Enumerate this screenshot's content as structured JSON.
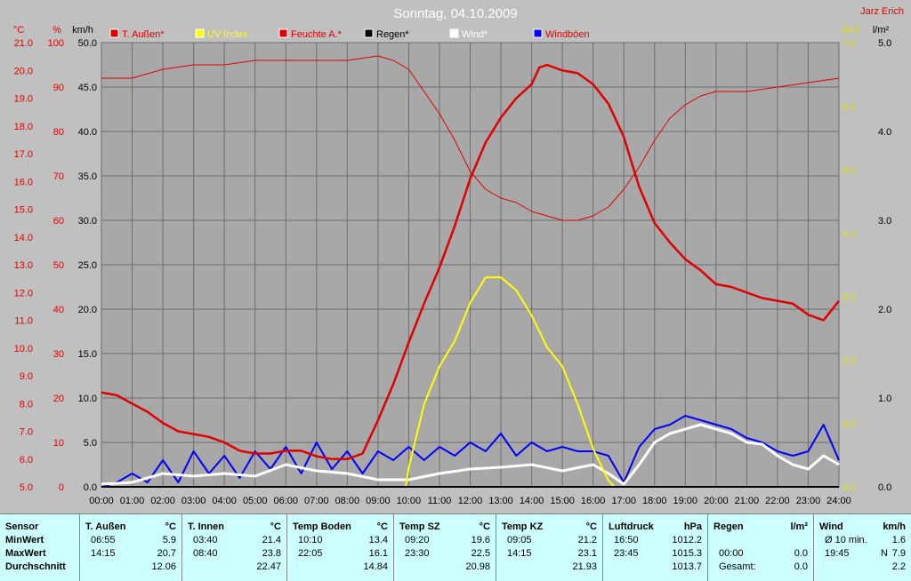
{
  "chart_data": {
    "type": "line",
    "title": "Sonntag, 04.10.2009",
    "author": "Jarz Erich",
    "legend": [
      "T. Außen*",
      "UV Index",
      "Feuchte A.*",
      "Regen*",
      "Wind*",
      "Windböen"
    ],
    "colors": {
      "t_aussen": "#e00000",
      "uv": "#ffff00",
      "feuchte": "#e00000",
      "regen": "#000000",
      "wind": "#ffffff",
      "windboeen": "#0000ff"
    },
    "axes": {
      "temp": {
        "unit": "°C",
        "ylim": [
          5.0,
          21.0
        ],
        "ticks": [
          "5.0",
          "6.0",
          "7.0",
          "8.0",
          "9.0",
          "10.0",
          "11.0",
          "12.0",
          "13.0",
          "14.0",
          "15.0",
          "16.0",
          "17.0",
          "18.0",
          "19.0",
          "20.0",
          "21.0"
        ]
      },
      "humidity": {
        "unit": "%",
        "ylim": [
          0,
          100
        ],
        "ticks": [
          "0",
          "10",
          "20",
          "30",
          "40",
          "50",
          "60",
          "70",
          "80",
          "90",
          "100"
        ]
      },
      "wind": {
        "unit": "km/h",
        "ylim": [
          0,
          50
        ],
        "ticks": [
          "0.0",
          "5.0",
          "10.0",
          "15.0",
          "20.0",
          "25.0",
          "30.0",
          "35.0",
          "40.0",
          "45.0",
          "50.0"
        ]
      },
      "uv": {
        "unit": "UV-I",
        "ylim": [
          0,
          7
        ],
        "ticks": [
          "0.0",
          "1.0",
          "2.0",
          "3.0",
          "4.0",
          "5.0",
          "6.0",
          "7.0"
        ]
      },
      "rain": {
        "unit": "l/m²",
        "ylim": [
          0,
          5
        ],
        "ticks": [
          "0.0",
          "1.0",
          "2.0",
          "3.0",
          "4.0",
          "5.0"
        ]
      },
      "time": {
        "ticks": [
          "00:00",
          "01:00",
          "02:00",
          "03:00",
          "04:00",
          "05:00",
          "06:00",
          "07:00",
          "08:00",
          "09:00",
          "10:00",
          "11:00",
          "12:00",
          "13:00",
          "14:00",
          "15:00",
          "16:00",
          "17:00",
          "18:00",
          "19:00",
          "20:00",
          "21:00",
          "22:00",
          "23:00",
          "24:00"
        ]
      }
    },
    "grid": true,
    "series": [
      {
        "name": "T. Außen*",
        "axis": "temp",
        "points": [
          [
            0,
            8.4
          ],
          [
            0.5,
            8.3
          ],
          [
            1,
            8.0
          ],
          [
            1.5,
            7.7
          ],
          [
            2,
            7.3
          ],
          [
            2.5,
            7.0
          ],
          [
            3,
            6.9
          ],
          [
            3.5,
            6.8
          ],
          [
            4,
            6.6
          ],
          [
            4.5,
            6.3
          ],
          [
            5,
            6.2
          ],
          [
            5.5,
            6.2
          ],
          [
            6,
            6.3
          ],
          [
            6.5,
            6.3
          ],
          [
            7,
            6.1
          ],
          [
            7.5,
            6.0
          ],
          [
            8,
            6.0
          ],
          [
            8.5,
            6.2
          ],
          [
            9,
            7.4
          ],
          [
            9.5,
            8.7
          ],
          [
            10,
            10.2
          ],
          [
            10.5,
            11.6
          ],
          [
            11,
            12.9
          ],
          [
            11.5,
            14.4
          ],
          [
            12,
            16.1
          ],
          [
            12.5,
            17.4
          ],
          [
            13,
            18.3
          ],
          [
            13.5,
            19.0
          ],
          [
            14,
            19.5
          ],
          [
            14.25,
            20.1
          ],
          [
            14.5,
            20.2
          ],
          [
            15,
            20.0
          ],
          [
            15.5,
            19.9
          ],
          [
            16,
            19.5
          ],
          [
            16.5,
            18.8
          ],
          [
            17,
            17.6
          ],
          [
            17.5,
            15.8
          ],
          [
            18,
            14.5
          ],
          [
            18.5,
            13.8
          ],
          [
            19,
            13.2
          ],
          [
            19.5,
            12.8
          ],
          [
            20,
            12.3
          ],
          [
            20.5,
            12.2
          ],
          [
            21,
            12.0
          ],
          [
            21.5,
            11.8
          ],
          [
            22,
            11.7
          ],
          [
            22.5,
            11.6
          ],
          [
            23,
            11.2
          ],
          [
            23.5,
            11.0
          ],
          [
            24,
            11.7
          ]
        ]
      },
      {
        "name": "UV Index",
        "axis": "uv",
        "points": [
          [
            0,
            0
          ],
          [
            9.9,
            0
          ],
          [
            10,
            0.3
          ],
          [
            10.5,
            1.3
          ],
          [
            11,
            1.9
          ],
          [
            11.5,
            2.3
          ],
          [
            12,
            2.9
          ],
          [
            12.5,
            3.3
          ],
          [
            13,
            3.3
          ],
          [
            13.5,
            3.1
          ],
          [
            14,
            2.7
          ],
          [
            14.5,
            2.2
          ],
          [
            15,
            1.9
          ],
          [
            15.5,
            1.3
          ],
          [
            16,
            0.6
          ],
          [
            16.5,
            0.1
          ],
          [
            16.7,
            0
          ],
          [
            24,
            0
          ]
        ]
      },
      {
        "name": "Feuchte A.*",
        "axis": "humidity",
        "points": [
          [
            0,
            92
          ],
          [
            1,
            92
          ],
          [
            2,
            94
          ],
          [
            3,
            95
          ],
          [
            4,
            95
          ],
          [
            5,
            96
          ],
          [
            6,
            96
          ],
          [
            7,
            96
          ],
          [
            8,
            96
          ],
          [
            9,
            97
          ],
          [
            9.5,
            96
          ],
          [
            10,
            94
          ],
          [
            10.5,
            89
          ],
          [
            11,
            84
          ],
          [
            11.5,
            78
          ],
          [
            12,
            71
          ],
          [
            12.5,
            67
          ],
          [
            13,
            65
          ],
          [
            13.5,
            64
          ],
          [
            14,
            62
          ],
          [
            14.5,
            61
          ],
          [
            15,
            60
          ],
          [
            15.5,
            60
          ],
          [
            16,
            61
          ],
          [
            16.5,
            63
          ],
          [
            17,
            67
          ],
          [
            17.5,
            72
          ],
          [
            18,
            78
          ],
          [
            18.5,
            83
          ],
          [
            19,
            86
          ],
          [
            19.5,
            88
          ],
          [
            20,
            89
          ],
          [
            21,
            89
          ],
          [
            22,
            90
          ],
          [
            23,
            91
          ],
          [
            24,
            92
          ]
        ]
      },
      {
        "name": "Regen*",
        "axis": "rain",
        "points": [
          [
            0,
            0
          ],
          [
            24,
            0
          ]
        ]
      },
      {
        "name": "Wind*",
        "axis": "wind",
        "points": [
          [
            0,
            0.3
          ],
          [
            1,
            0.5
          ],
          [
            2,
            1.5
          ],
          [
            3,
            1.2
          ],
          [
            4,
            1.5
          ],
          [
            5,
            1.2
          ],
          [
            6,
            2.5
          ],
          [
            7,
            1.8
          ],
          [
            8,
            1.5
          ],
          [
            9,
            0.8
          ],
          [
            10,
            0.8
          ],
          [
            11,
            1.5
          ],
          [
            12,
            2.0
          ],
          [
            13,
            2.2
          ],
          [
            14,
            2.5
          ],
          [
            15,
            1.8
          ],
          [
            16,
            2.5
          ],
          [
            16.5,
            1.5
          ],
          [
            17,
            0.3
          ],
          [
            17.5,
            2.5
          ],
          [
            18,
            5.0
          ],
          [
            18.5,
            6.0
          ],
          [
            19,
            6.5
          ],
          [
            19.5,
            7.0
          ],
          [
            20,
            6.5
          ],
          [
            20.5,
            6.0
          ],
          [
            21,
            5.0
          ],
          [
            21.5,
            4.8
          ],
          [
            22,
            3.5
          ],
          [
            22.5,
            2.5
          ],
          [
            23,
            2.0
          ],
          [
            23.5,
            3.5
          ],
          [
            24,
            2.5
          ]
        ]
      },
      {
        "name": "Windböen",
        "axis": "wind",
        "points": [
          [
            0,
            0
          ],
          [
            0.5,
            0.5
          ],
          [
            1,
            1.5
          ],
          [
            1.5,
            0.5
          ],
          [
            2,
            3.0
          ],
          [
            2.5,
            0.5
          ],
          [
            3,
            4.0
          ],
          [
            3.5,
            1.5
          ],
          [
            4,
            3.5
          ],
          [
            4.5,
            1.0
          ],
          [
            5,
            4.0
          ],
          [
            5.5,
            2.0
          ],
          [
            6,
            4.5
          ],
          [
            6.5,
            1.5
          ],
          [
            7,
            5.0
          ],
          [
            7.5,
            2.0
          ],
          [
            8,
            4.0
          ],
          [
            8.5,
            1.5
          ],
          [
            9,
            4.0
          ],
          [
            9.5,
            3.0
          ],
          [
            10,
            4.5
          ],
          [
            10.5,
            3.0
          ],
          [
            11,
            4.5
          ],
          [
            11.5,
            3.5
          ],
          [
            12,
            5.0
          ],
          [
            12.5,
            4.0
          ],
          [
            13,
            6.0
          ],
          [
            13.5,
            3.5
          ],
          [
            14,
            5.0
          ],
          [
            14.5,
            4.0
          ],
          [
            15,
            4.5
          ],
          [
            15.5,
            4.0
          ],
          [
            16,
            4.0
          ],
          [
            16.5,
            3.5
          ],
          [
            17,
            0.5
          ],
          [
            17.5,
            4.5
          ],
          [
            18,
            6.5
          ],
          [
            18.5,
            7.0
          ],
          [
            19,
            8.0
          ],
          [
            19.5,
            7.5
          ],
          [
            20,
            7.0
          ],
          [
            20.5,
            6.5
          ],
          [
            21,
            5.5
          ],
          [
            21.5,
            5.0
          ],
          [
            22,
            4.0
          ],
          [
            22.5,
            3.5
          ],
          [
            23,
            4.0
          ],
          [
            23.5,
            7.0
          ],
          [
            24,
            3.0
          ]
        ]
      }
    ]
  },
  "stats": {
    "sections": [
      {
        "title": "Sensor",
        "unit": "",
        "rows": [
          [
            "MinWert",
            "",
            ""
          ],
          [
            "MaxWert",
            "",
            ""
          ],
          [
            "Durchschnitt",
            "",
            ""
          ]
        ]
      },
      {
        "title": "T. Außen",
        "unit": "°C",
        "rows": [
          [
            "06:55",
            "",
            "5.9"
          ],
          [
            "14:15",
            "",
            "20.7"
          ],
          [
            "",
            "",
            "12.06"
          ]
        ]
      },
      {
        "title": "T. Innen",
        "unit": "°C",
        "rows": [
          [
            "03:40",
            "",
            "21.4"
          ],
          [
            "08:40",
            "",
            "23.8"
          ],
          [
            "",
            "",
            "22.47"
          ]
        ]
      },
      {
        "title": "Temp Boden",
        "unit": "°C",
        "rows": [
          [
            "10:10",
            "",
            "13.4"
          ],
          [
            "22:05",
            "",
            "16.1"
          ],
          [
            "",
            "",
            "14.84"
          ]
        ]
      },
      {
        "title": "Temp SZ",
        "unit": "°C",
        "rows": [
          [
            "09:20",
            "",
            "19.6"
          ],
          [
            "23:30",
            "",
            "22.5"
          ],
          [
            "",
            "",
            "20.98"
          ]
        ]
      },
      {
        "title": "Temp KZ",
        "unit": "°C",
        "rows": [
          [
            "09:05",
            "",
            "21.2"
          ],
          [
            "14:15",
            "",
            "23.1"
          ],
          [
            "",
            "",
            "21.93"
          ]
        ]
      },
      {
        "title": "Luftdruck",
        "unit": "hPa",
        "rows": [
          [
            "16:50",
            "",
            "1012.2"
          ],
          [
            "23:45",
            "",
            "1015.3"
          ],
          [
            "",
            "",
            "1013.7"
          ]
        ]
      },
      {
        "title": "Regen",
        "unit": "l/m²",
        "rows": [
          [
            "",
            "",
            ""
          ],
          [
            "00:00",
            "",
            "0.0"
          ],
          [
            "Gesamt:",
            "",
            "0.0"
          ]
        ]
      },
      {
        "title": "Wind",
        "unit": "km/h",
        "rows": [
          [
            "Ø 10 min.",
            "",
            "1.6"
          ],
          [
            "19:45",
            "N",
            "7.9"
          ],
          [
            "",
            "",
            "2.2"
          ]
        ]
      }
    ]
  }
}
